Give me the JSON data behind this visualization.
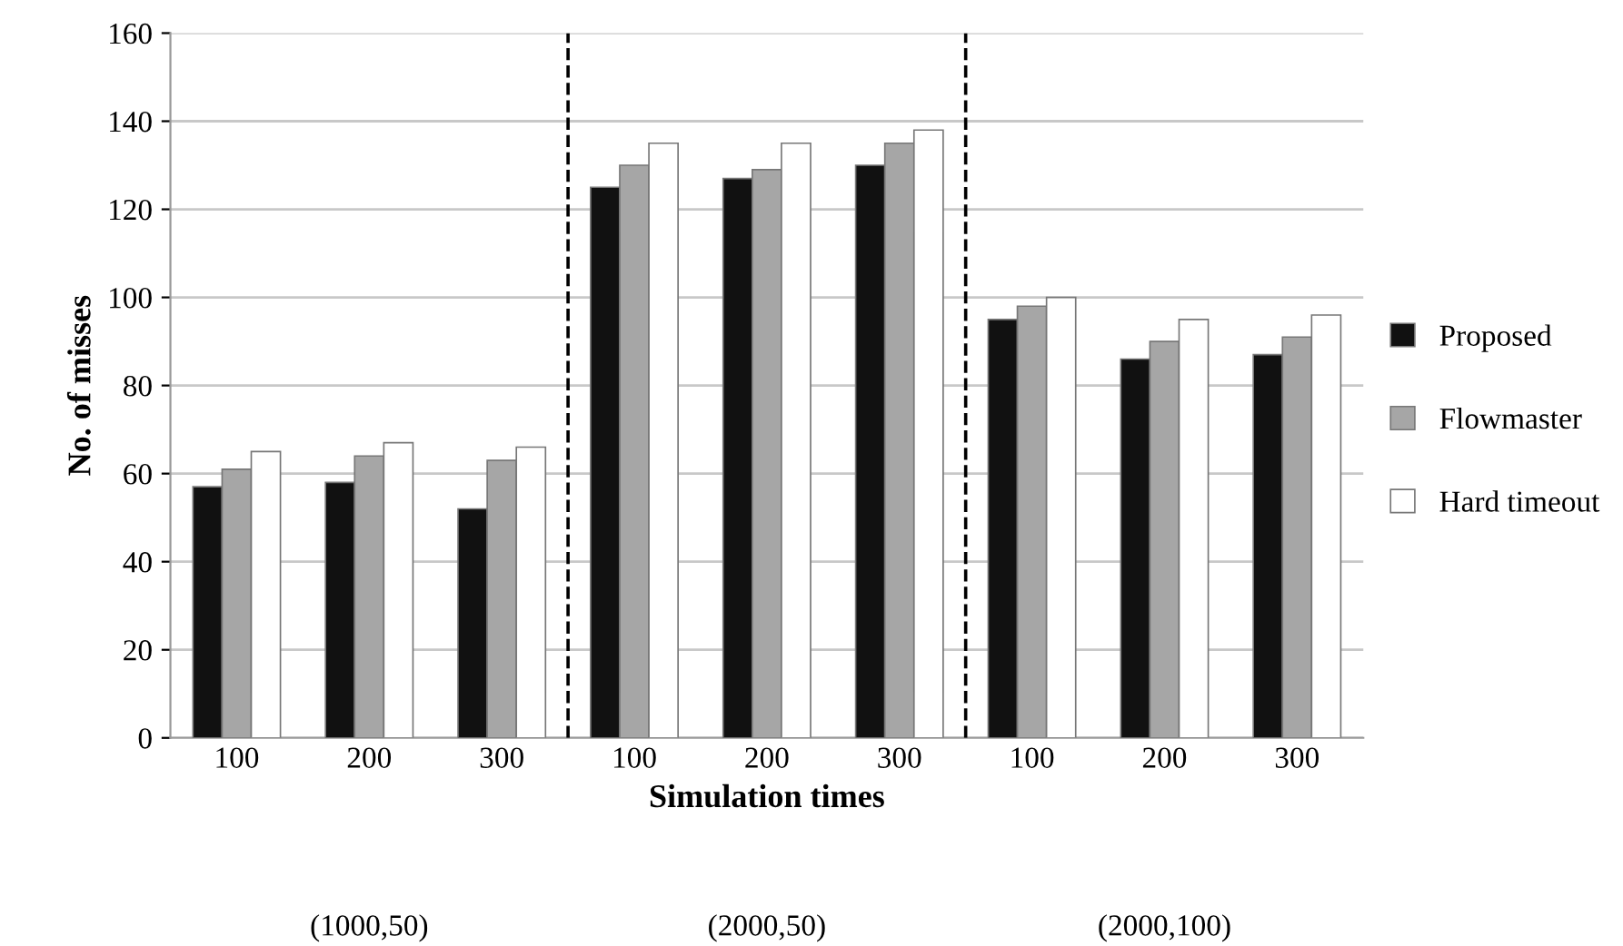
{
  "chart_data": {
    "type": "bar",
    "categories": [
      "100",
      "200",
      "300",
      "100",
      "200",
      "300",
      "100",
      "200",
      "300"
    ],
    "series": [
      {
        "name": "Proposed",
        "color": "#111111",
        "values": [
          57,
          58,
          52,
          125,
          127,
          130,
          95,
          86,
          87
        ]
      },
      {
        "name": "Flowmaster",
        "color": "#a6a6a6",
        "values": [
          61,
          64,
          63,
          130,
          129,
          135,
          98,
          90,
          91
        ]
      },
      {
        "name": "Hard timeout",
        "color": "#ffffff",
        "values": [
          65,
          67,
          66,
          135,
          135,
          138,
          100,
          95,
          96
        ]
      }
    ],
    "xlabel": "Simulation times",
    "ylabel": "No. of misses",
    "ylim": [
      0,
      160
    ],
    "yticks": [
      0,
      20,
      40,
      60,
      80,
      100,
      120,
      140,
      160
    ],
    "grid": "y",
    "legend": "right",
    "annotations": [
      "(1000,50)",
      "(2000,50)",
      "(2000,100)"
    ]
  }
}
